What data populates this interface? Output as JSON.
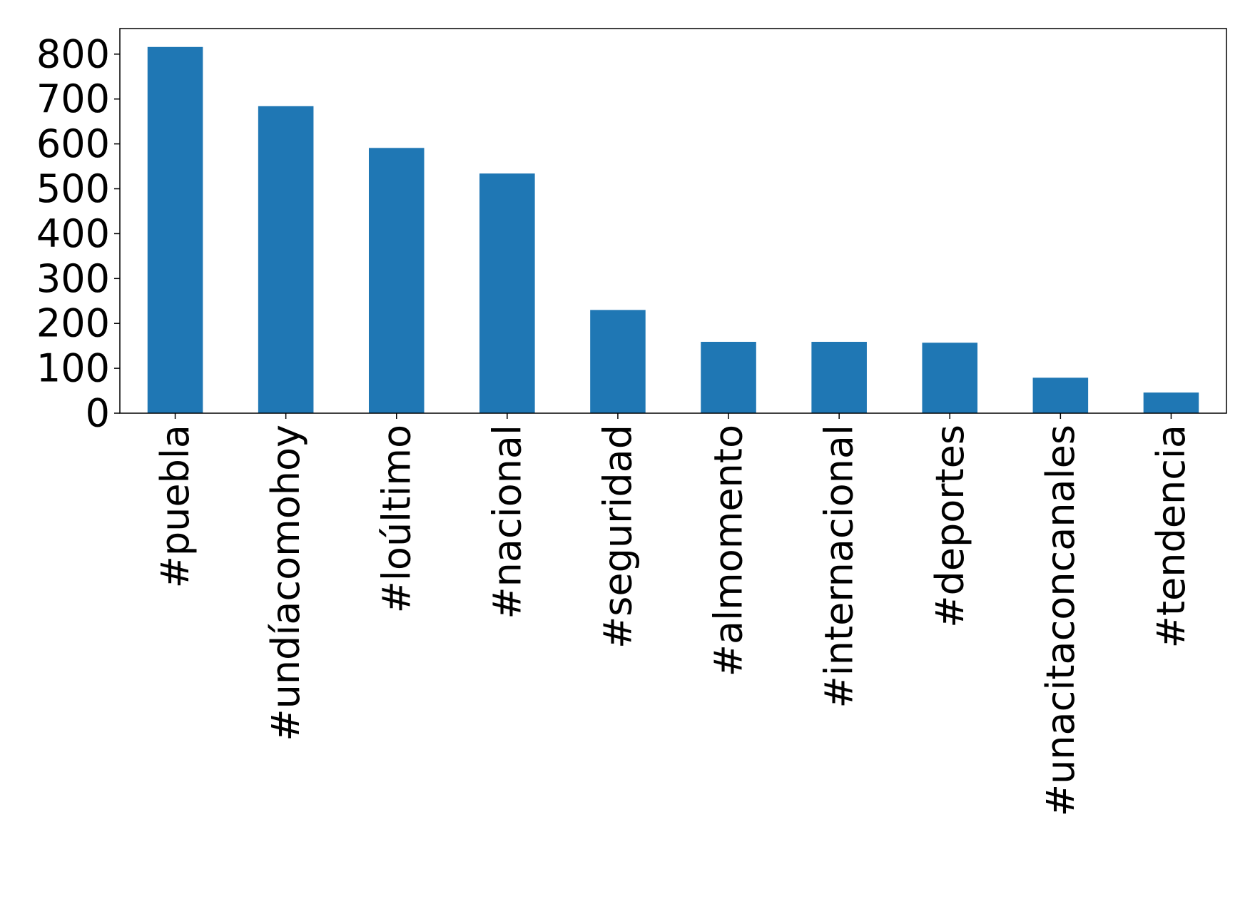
{
  "chart_data": {
    "type": "bar",
    "categories": [
      "#puebla",
      "#undíacomohoy",
      "#loúltimo",
      "#nacional",
      "#seguridad",
      "#almomento",
      "#internacional",
      "#deportes",
      "#unacitaconcanales",
      "#tendencia"
    ],
    "values": [
      816,
      684,
      591,
      534,
      230,
      159,
      159,
      157,
      79,
      46
    ],
    "color": "#1f77b4",
    "ylim": [
      0,
      857
    ],
    "yticks": [
      0,
      100,
      200,
      300,
      400,
      500,
      600,
      700,
      800
    ],
    "grid": false
  }
}
